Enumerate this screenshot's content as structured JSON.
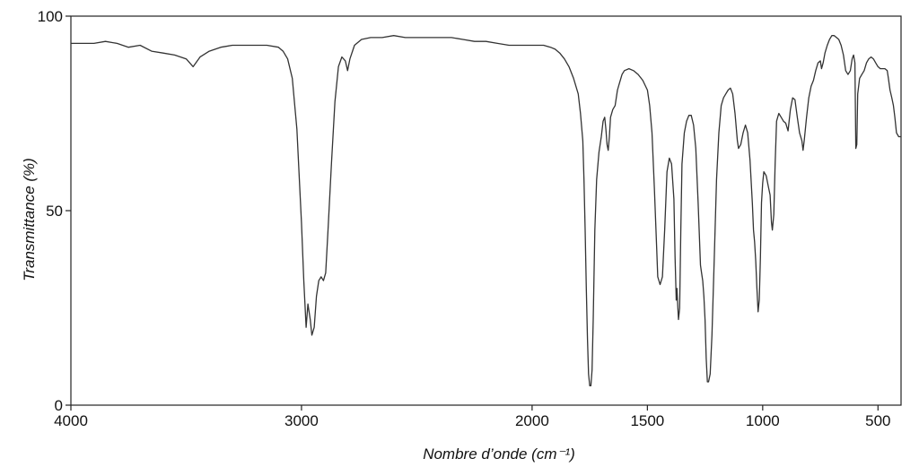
{
  "chart_data": {
    "type": "line",
    "title": "",
    "xlabel": "Nombre d’onde (cm⁻¹)",
    "ylabel": "Transmittance (%)",
    "xlim": [
      4000,
      400
    ],
    "ylim": [
      0,
      100
    ],
    "x_reversed": true,
    "grid": false,
    "legend": "none",
    "line_color": "#333333",
    "xticks": [
      {
        "value": 4000,
        "label": "4000"
      },
      {
        "value": 3000,
        "label": "3000"
      },
      {
        "value": 2000,
        "label": "2000"
      },
      {
        "value": 1500,
        "label": "1500"
      },
      {
        "value": 1000,
        "label": "1000"
      },
      {
        "value": 500,
        "label": "500"
      }
    ],
    "yticks": [
      {
        "value": 0,
        "label": "0"
      },
      {
        "value": 50,
        "label": "50"
      },
      {
        "value": 100,
        "label": "100"
      }
    ],
    "series": [
      {
        "points": [
          [
            4000,
            93
          ],
          [
            3900,
            93
          ],
          [
            3850,
            93.5
          ],
          [
            3800,
            93
          ],
          [
            3750,
            92
          ],
          [
            3700,
            92.5
          ],
          [
            3650,
            91
          ],
          [
            3600,
            90.5
          ],
          [
            3550,
            90
          ],
          [
            3500,
            89
          ],
          [
            3470,
            87
          ],
          [
            3440,
            89.5
          ],
          [
            3400,
            91
          ],
          [
            3350,
            92
          ],
          [
            3300,
            92.5
          ],
          [
            3250,
            92.5
          ],
          [
            3200,
            92.5
          ],
          [
            3150,
            92.5
          ],
          [
            3100,
            92
          ],
          [
            3080,
            91
          ],
          [
            3060,
            89
          ],
          [
            3040,
            84
          ],
          [
            3020,
            71
          ],
          [
            3000,
            47
          ],
          [
            2990,
            32
          ],
          [
            2980,
            20
          ],
          [
            2972,
            26
          ],
          [
            2962,
            22
          ],
          [
            2955,
            18
          ],
          [
            2945,
            20
          ],
          [
            2935,
            28
          ],
          [
            2925,
            32
          ],
          [
            2915,
            33
          ],
          [
            2905,
            32
          ],
          [
            2895,
            34
          ],
          [
            2885,
            45
          ],
          [
            2870,
            62
          ],
          [
            2855,
            78
          ],
          [
            2840,
            87
          ],
          [
            2825,
            89.5
          ],
          [
            2810,
            88.5
          ],
          [
            2800,
            86
          ],
          [
            2790,
            89
          ],
          [
            2770,
            92.5
          ],
          [
            2740,
            94
          ],
          [
            2700,
            94.5
          ],
          [
            2650,
            94.5
          ],
          [
            2600,
            95
          ],
          [
            2550,
            94.5
          ],
          [
            2500,
            94.5
          ],
          [
            2450,
            94.5
          ],
          [
            2400,
            94.5
          ],
          [
            2350,
            94.5
          ],
          [
            2300,
            94
          ],
          [
            2250,
            93.5
          ],
          [
            2200,
            93.5
          ],
          [
            2150,
            93
          ],
          [
            2100,
            92.5
          ],
          [
            2050,
            92.5
          ],
          [
            2000,
            92.5
          ],
          [
            1950,
            92.5
          ],
          [
            1920,
            92
          ],
          [
            1900,
            91.5
          ],
          [
            1880,
            90.5
          ],
          [
            1860,
            89
          ],
          [
            1840,
            87
          ],
          [
            1820,
            84
          ],
          [
            1800,
            80
          ],
          [
            1790,
            75
          ],
          [
            1780,
            68
          ],
          [
            1775,
            58
          ],
          [
            1770,
            45
          ],
          [
            1765,
            30
          ],
          [
            1760,
            17
          ],
          [
            1755,
            8
          ],
          [
            1750,
            5
          ],
          [
            1745,
            5
          ],
          [
            1740,
            9
          ],
          [
            1735,
            22
          ],
          [
            1728,
            45
          ],
          [
            1720,
            58
          ],
          [
            1710,
            65
          ],
          [
            1700,
            69
          ],
          [
            1692,
            73
          ],
          [
            1685,
            74
          ],
          [
            1680,
            71
          ],
          [
            1675,
            67
          ],
          [
            1670,
            65.5
          ],
          [
            1665,
            69
          ],
          [
            1660,
            74
          ],
          [
            1650,
            76
          ],
          [
            1640,
            77
          ],
          [
            1630,
            81
          ],
          [
            1620,
            83
          ],
          [
            1610,
            85
          ],
          [
            1600,
            86
          ],
          [
            1580,
            86.5
          ],
          [
            1560,
            86
          ],
          [
            1540,
            85
          ],
          [
            1520,
            83.5
          ],
          [
            1500,
            81
          ],
          [
            1490,
            77
          ],
          [
            1480,
            70
          ],
          [
            1470,
            56
          ],
          [
            1460,
            41
          ],
          [
            1455,
            33
          ],
          [
            1445,
            31
          ],
          [
            1435,
            33
          ],
          [
            1425,
            45
          ],
          [
            1415,
            60
          ],
          [
            1405,
            63.5
          ],
          [
            1395,
            62
          ],
          [
            1385,
            53
          ],
          [
            1380,
            38
          ],
          [
            1375,
            27
          ],
          [
            1372,
            30
          ],
          [
            1368,
            25
          ],
          [
            1365,
            22
          ],
          [
            1360,
            25
          ],
          [
            1355,
            45
          ],
          [
            1350,
            62
          ],
          [
            1340,
            70
          ],
          [
            1330,
            73
          ],
          [
            1320,
            74.5
          ],
          [
            1310,
            74.5
          ],
          [
            1300,
            72
          ],
          [
            1290,
            66
          ],
          [
            1280,
            52
          ],
          [
            1270,
            36
          ],
          [
            1265,
            34
          ],
          [
            1260,
            32
          ],
          [
            1255,
            28
          ],
          [
            1250,
            22
          ],
          [
            1245,
            12
          ],
          [
            1240,
            6
          ],
          [
            1235,
            6
          ],
          [
            1228,
            8
          ],
          [
            1220,
            18
          ],
          [
            1210,
            38
          ],
          [
            1200,
            58
          ],
          [
            1190,
            70
          ],
          [
            1180,
            77
          ],
          [
            1170,
            79
          ],
          [
            1160,
            80
          ],
          [
            1150,
            81
          ],
          [
            1140,
            81.5
          ],
          [
            1130,
            80
          ],
          [
            1120,
            75
          ],
          [
            1110,
            68
          ],
          [
            1105,
            66
          ],
          [
            1095,
            67
          ],
          [
            1085,
            70
          ],
          [
            1075,
            72
          ],
          [
            1065,
            70
          ],
          [
            1055,
            63
          ],
          [
            1045,
            52
          ],
          [
            1040,
            45
          ],
          [
            1035,
            42
          ],
          [
            1030,
            37
          ],
          [
            1025,
            30
          ],
          [
            1020,
            24
          ],
          [
            1015,
            27
          ],
          [
            1010,
            38
          ],
          [
            1005,
            52
          ],
          [
            1000,
            57
          ],
          [
            995,
            60
          ],
          [
            985,
            59
          ],
          [
            975,
            56
          ],
          [
            968,
            54
          ],
          [
            962,
            47
          ],
          [
            958,
            45
          ],
          [
            952,
            49
          ],
          [
            946,
            62
          ],
          [
            940,
            73
          ],
          [
            930,
            75
          ],
          [
            920,
            74
          ],
          [
            910,
            73
          ],
          [
            900,
            72.5
          ],
          [
            890,
            70.5
          ],
          [
            880,
            76
          ],
          [
            870,
            79
          ],
          [
            860,
            78.5
          ],
          [
            850,
            74
          ],
          [
            840,
            70
          ],
          [
            830,
            68
          ],
          [
            825,
            65.5
          ],
          [
            820,
            68
          ],
          [
            810,
            74
          ],
          [
            800,
            79
          ],
          [
            790,
            82
          ],
          [
            780,
            83.5
          ],
          [
            770,
            86
          ],
          [
            760,
            88
          ],
          [
            750,
            88.5
          ],
          [
            745,
            86.5
          ],
          [
            738,
            88
          ],
          [
            730,
            90.5
          ],
          [
            720,
            92.5
          ],
          [
            710,
            94
          ],
          [
            700,
            95
          ],
          [
            690,
            95
          ],
          [
            680,
            94.5
          ],
          [
            670,
            94
          ],
          [
            660,
            92.5
          ],
          [
            650,
            90
          ],
          [
            640,
            86
          ],
          [
            630,
            85
          ],
          [
            620,
            86
          ],
          [
            612,
            89
          ],
          [
            606,
            90
          ],
          [
            600,
            88
          ],
          [
            596,
            66
          ],
          [
            592,
            67
          ],
          [
            588,
            80
          ],
          [
            580,
            84
          ],
          [
            570,
            85
          ],
          [
            560,
            86
          ],
          [
            550,
            88
          ],
          [
            540,
            89
          ],
          [
            530,
            89.5
          ],
          [
            520,
            89
          ],
          [
            510,
            88
          ],
          [
            500,
            87
          ],
          [
            490,
            86.5
          ],
          [
            480,
            86.5
          ],
          [
            470,
            86.5
          ],
          [
            460,
            86
          ],
          [
            455,
            84
          ],
          [
            448,
            81
          ],
          [
            440,
            79
          ],
          [
            433,
            77
          ],
          [
            427,
            74
          ],
          [
            420,
            70
          ],
          [
            410,
            69
          ],
          [
            400,
            69
          ]
        ]
      }
    ]
  }
}
